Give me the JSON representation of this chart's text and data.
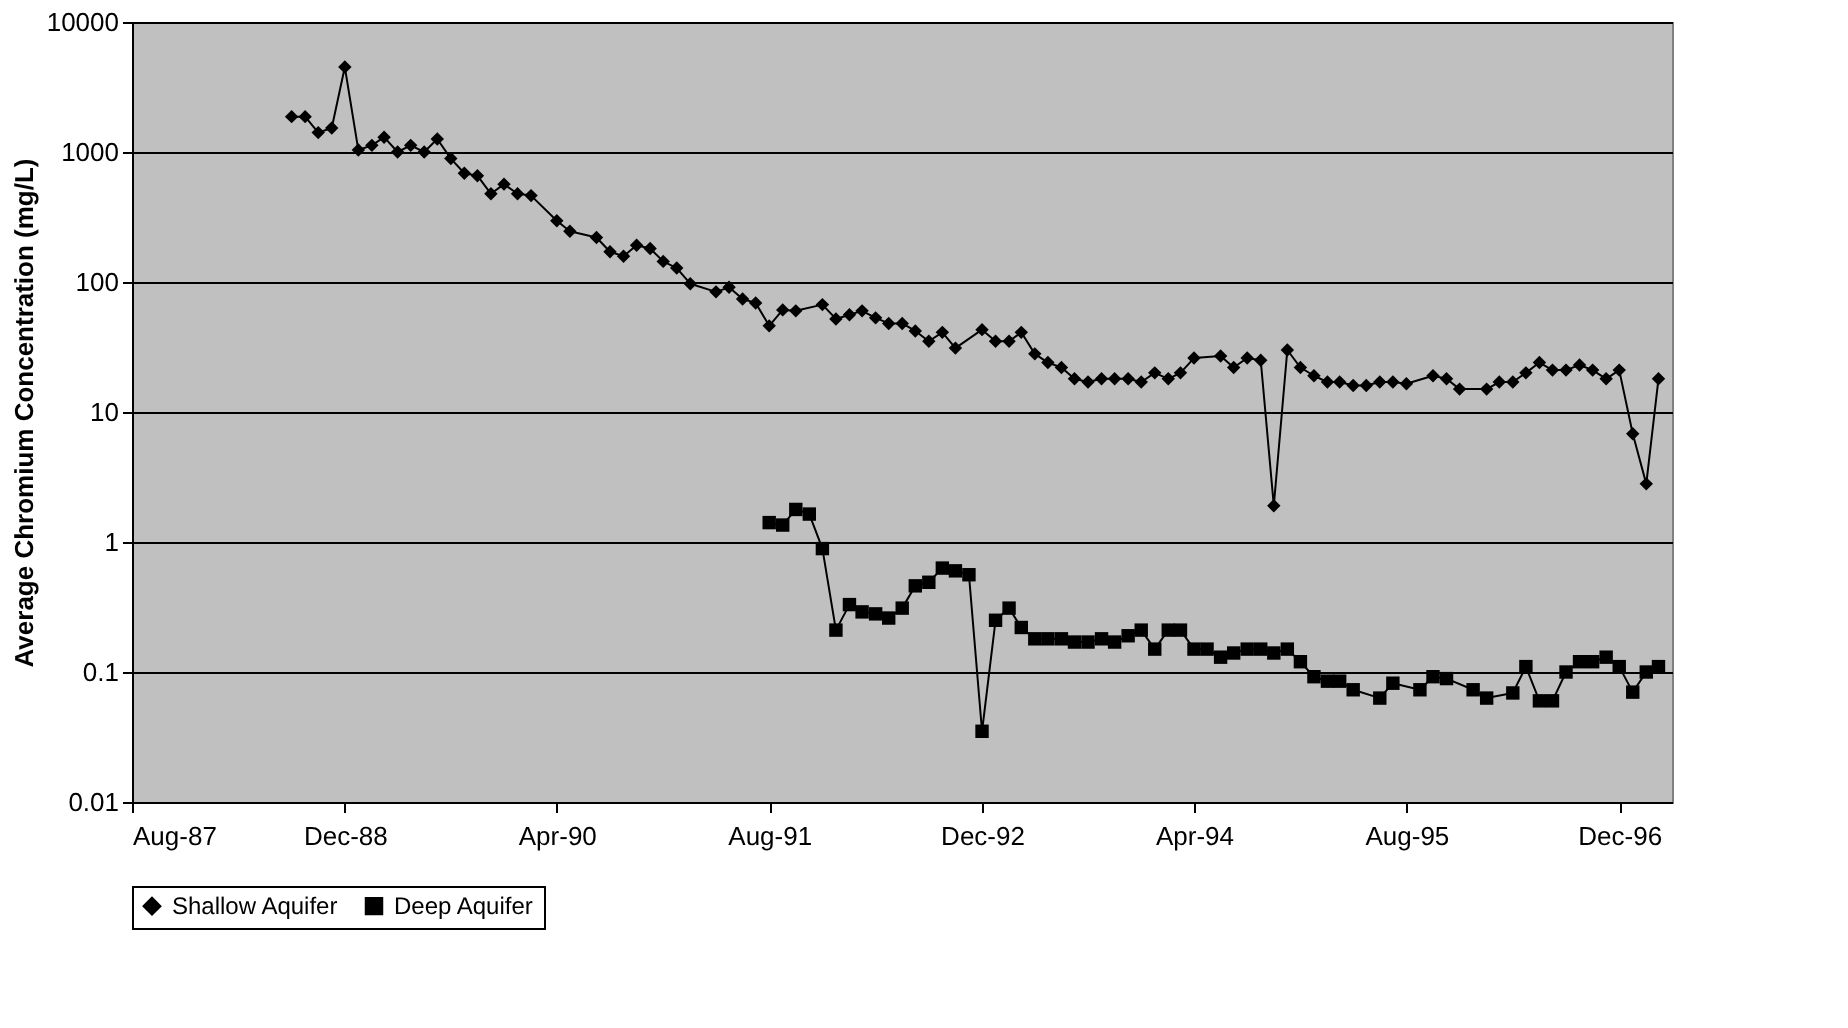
{
  "chart_data": {
    "type": "line",
    "ylabel": "Average Chromium Concentration (mg/L)",
    "log": true,
    "grid": "y",
    "legend": "bottom",
    "ylim": [
      0.01,
      10000
    ],
    "yticks": [
      0.01,
      0.1,
      1,
      10,
      100,
      1000,
      10000
    ],
    "xlim": [
      "1987-08",
      "1997-04"
    ],
    "xticks": [
      {
        "value": "1987-08",
        "label": "Aug-87"
      },
      {
        "value": "1988-12",
        "label": "Dec-88"
      },
      {
        "value": "1990-04",
        "label": "Apr-90"
      },
      {
        "value": "1991-08",
        "label": "Aug-91"
      },
      {
        "value": "1992-12",
        "label": "Dec-92"
      },
      {
        "value": "1994-04",
        "label": "Apr-94"
      },
      {
        "value": "1995-08",
        "label": "Aug-95"
      },
      {
        "value": "1996-12",
        "label": "Dec-96"
      }
    ],
    "series": [
      {
        "name": "Shallow Aquifer",
        "color": "#000000",
        "marker": "diamond",
        "x": [
          "1988-08",
          "1988-09",
          "1988-10",
          "1988-11",
          "1988-12",
          "1989-01",
          "1989-02",
          "1989-03",
          "1989-04",
          "1989-05",
          "1989-06",
          "1989-07",
          "1989-08",
          "1989-09",
          "1989-10",
          "1989-11",
          "1989-12",
          "1990-01",
          "1990-02",
          "1990-04",
          "1990-05",
          "1990-07",
          "1990-08",
          "1990-09",
          "1990-10",
          "1990-11",
          "1990-12",
          "1991-01",
          "1991-02",
          "1991-04",
          "1991-05",
          "1991-06",
          "1991-07",
          "1991-08",
          "1991-09",
          "1991-10",
          "1991-12",
          "1992-01",
          "1992-02",
          "1992-03",
          "1992-04",
          "1992-05",
          "1992-06",
          "1992-07",
          "1992-08",
          "1992-09",
          "1992-10",
          "1992-12",
          "1993-01",
          "1993-02",
          "1993-03",
          "1993-04",
          "1993-05",
          "1993-06",
          "1993-07",
          "1993-08",
          "1993-09",
          "1993-10",
          "1993-11",
          "1993-12",
          "1994-01",
          "1994-02",
          "1994-03",
          "1994-04",
          "1994-06",
          "1994-07",
          "1994-08",
          "1994-09",
          "1994-10",
          "1994-11",
          "1994-12",
          "1995-01",
          "1995-02",
          "1995-03",
          "1995-04",
          "1995-05",
          "1995-06",
          "1995-07",
          "1995-08",
          "1995-10",
          "1995-11",
          "1995-12",
          "1996-02",
          "1996-03",
          "1996-04",
          "1996-05",
          "1996-06",
          "1996-07",
          "1996-08",
          "1996-09",
          "1996-10",
          "1996-11",
          "1996-12",
          "1997-01",
          "1997-02",
          "1997-03"
        ],
        "values": [
          1870,
          1870,
          1410,
          1530,
          4500,
          1035,
          1125,
          1300,
          1000,
          1125,
          1000,
          1260,
          890,
          687,
          657,
          477,
          566,
          477,
          462,
          296,
          246,
          220,
          171,
          158,
          192,
          181,
          144,
          128,
          97,
          84,
          91,
          74,
          69,
          46,
          61,
          60,
          67,
          52,
          56,
          60,
          53,
          48,
          48,
          42,
          35,
          41,
          31,
          43,
          35,
          35,
          41,
          28,
          24,
          22,
          18,
          17,
          18,
          18,
          18,
          17,
          20,
          18,
          20,
          26,
          27,
          22,
          26,
          25,
          1.9,
          30,
          22,
          19,
          17,
          17,
          16,
          16,
          17,
          17,
          16.5,
          19,
          18,
          15,
          15,
          17,
          17,
          20,
          24,
          21,
          21,
          23,
          21,
          18,
          21,
          6.8,
          2.8,
          18
        ]
      },
      {
        "name": "Deep Aquifer",
        "color": "#000000",
        "marker": "square",
        "x": [
          "1991-08",
          "1991-09",
          "1991-10",
          "1991-11",
          "1991-12",
          "1992-01",
          "1992-02",
          "1992-03",
          "1992-04",
          "1992-05",
          "1992-06",
          "1992-07",
          "1992-08",
          "1992-09",
          "1992-10",
          "1992-11",
          "1992-12",
          "1993-01",
          "1993-02",
          "1993-03",
          "1993-04",
          "1993-05",
          "1993-06",
          "1993-07",
          "1993-08",
          "1993-09",
          "1993-10",
          "1993-11",
          "1993-12",
          "1994-01",
          "1994-02",
          "1994-03",
          "1994-04",
          "1994-05",
          "1994-06",
          "1994-07",
          "1994-08",
          "1994-09",
          "1994-10",
          "1994-11",
          "1994-12",
          "1995-01",
          "1995-02",
          "1995-03",
          "1995-04",
          "1995-06",
          "1995-07",
          "1995-09",
          "1995-10",
          "1995-11",
          "1996-01",
          "1996-02",
          "1996-04",
          "1996-05",
          "1996-06",
          "1996-07",
          "1996-08",
          "1996-09",
          "1996-10",
          "1996-11",
          "1996-12",
          "1997-01",
          "1997-02",
          "1997-03"
        ],
        "values": [
          1.41,
          1.35,
          1.78,
          1.64,
          0.89,
          0.21,
          0.33,
          0.29,
          0.28,
          0.26,
          0.31,
          0.46,
          0.49,
          0.63,
          0.6,
          0.56,
          0.035,
          0.25,
          0.31,
          0.22,
          0.18,
          0.18,
          0.18,
          0.17,
          0.17,
          0.18,
          0.17,
          0.19,
          0.21,
          0.15,
          0.21,
          0.21,
          0.15,
          0.15,
          0.13,
          0.14,
          0.15,
          0.15,
          0.14,
          0.15,
          0.12,
          0.092,
          0.085,
          0.085,
          0.073,
          0.063,
          0.082,
          0.073,
          0.092,
          0.089,
          0.073,
          0.063,
          0.069,
          0.11,
          0.06,
          0.06,
          0.1,
          0.12,
          0.12,
          0.13,
          0.11,
          0.07,
          0.1,
          0.11
        ]
      }
    ]
  }
}
